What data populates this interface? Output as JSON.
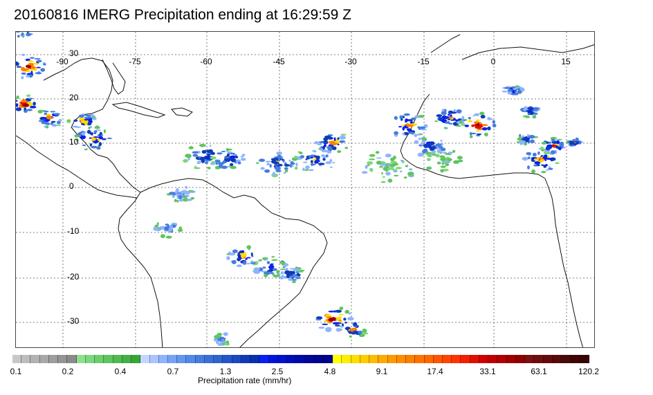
{
  "title": "20160816 IMERG Precipitation ending at 16:29:59 Z",
  "longitude_labels": [
    "-90",
    "-75",
    "-60",
    "-45",
    "-30",
    "-15",
    "0",
    "15"
  ],
  "latitude_labels": [
    "30",
    "20",
    "10",
    "0",
    "-10",
    "-20",
    "-30"
  ],
  "colorbar": {
    "label": "Precipitation rate (mm/hr)",
    "ticks": [
      "0.1",
      "0.2",
      "0.4",
      "0.7",
      "1.3",
      "2.5",
      "4.8",
      "9.1",
      "17.4",
      "33.1",
      "63.1",
      "120.2"
    ],
    "colors": [
      "#c8c8c8",
      "#bdbdbd",
      "#b2b2b2",
      "#a8a8a8",
      "#9e9e9e",
      "#949494",
      "#8a8a8a",
      "#8ee08e",
      "#7cd87c",
      "#6ccf6c",
      "#5dc55d",
      "#4fbb4f",
      "#43b043",
      "#39a539",
      "#c4d6ff",
      "#a9c4ff",
      "#8fb3ff",
      "#78a3f5",
      "#6396ee",
      "#5489e6",
      "#467cde",
      "#3a6fd8",
      "#2f63d2",
      "#2456ca",
      "#1a48c0",
      "#0f3cb6",
      "#0632ac",
      "#0a1ff0",
      "#0016e0",
      "#0012cc",
      "#000eb8",
      "#000aa8",
      "#00079a",
      "#000590",
      "#000486",
      "#ffff00",
      "#ffee00",
      "#ffdd00",
      "#ffcc00",
      "#ffbb00",
      "#ffaa00",
      "#ff9900",
      "#ff8c00",
      "#ff7f00",
      "#ff7200",
      "#ff6600",
      "#ff5500",
      "#ff4400",
      "#ff3300",
      "#f02000",
      "#e01000",
      "#d00000",
      "#c00000",
      "#b00000",
      "#a00000",
      "#900000",
      "#7a1010",
      "#6e0e0e",
      "#620c0c",
      "#560a0a",
      "#4a0808",
      "#400606",
      "#380505"
    ]
  },
  "colors": {
    "land_outline": "#111111",
    "grid": "#555555",
    "frame": "#444444"
  }
}
